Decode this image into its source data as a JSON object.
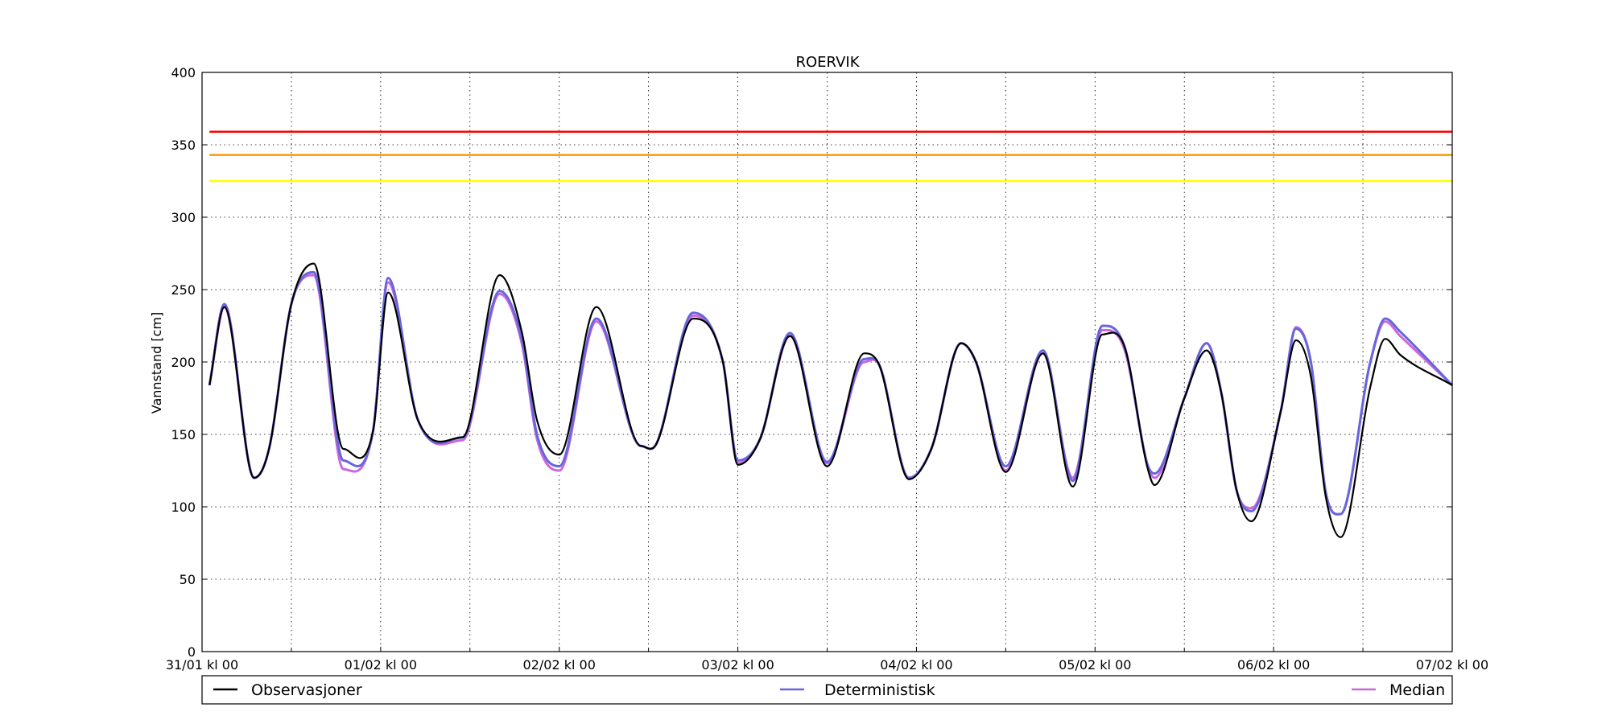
{
  "chart_data": {
    "type": "line",
    "title": "ROERVIK",
    "ylabel": "Vannstand [cm]",
    "ylim": [
      0,
      400
    ],
    "yticks": [
      "0",
      "50",
      "100",
      "150",
      "200",
      "250",
      "300",
      "350",
      "400"
    ],
    "x_range_hours": [
      0,
      168
    ],
    "xticks": [
      {
        "hour": 0,
        "label": "31/01 kl 00"
      },
      {
        "hour": 24,
        "label": "01/02 kl 00"
      },
      {
        "hour": 48,
        "label": "02/02 kl 00"
      },
      {
        "hour": 72,
        "label": "03/02 kl 00"
      },
      {
        "hour": 96,
        "label": "04/02 kl 00"
      },
      {
        "hour": 120,
        "label": "05/02 kl 00"
      },
      {
        "hour": 144,
        "label": "06/02 kl 00"
      },
      {
        "hour": 168,
        "label": "07/02 kl 00"
      }
    ],
    "minor_xticks_hours": [
      12,
      36,
      60,
      84,
      108,
      132,
      156
    ],
    "grid": true,
    "thresholds": [
      {
        "value": 359,
        "color": "#ff0000"
      },
      {
        "value": 343,
        "color": "#ff9900"
      },
      {
        "value": 325,
        "color": "#ffff00"
      }
    ],
    "series": [
      {
        "name": "Observasjoner",
        "color": "#000000",
        "points": [
          [
            1,
            184
          ],
          [
            3,
            238
          ],
          [
            7,
            120
          ],
          [
            9,
            140
          ],
          [
            12,
            240
          ],
          [
            15,
            268
          ],
          [
            19,
            140
          ],
          [
            23,
            153
          ],
          [
            25,
            248
          ],
          [
            29,
            160
          ],
          [
            35,
            148
          ],
          [
            40,
            260
          ],
          [
            43,
            220
          ],
          [
            45,
            160
          ],
          [
            48,
            136
          ],
          [
            53,
            238
          ],
          [
            59,
            142
          ],
          [
            61,
            143
          ],
          [
            66,
            230
          ],
          [
            70,
            200
          ],
          [
            72,
            129
          ],
          [
            75,
            147
          ],
          [
            79,
            218
          ],
          [
            84,
            128
          ],
          [
            89,
            206
          ],
          [
            91,
            198
          ],
          [
            95,
            119
          ],
          [
            98,
            140
          ],
          [
            102,
            213
          ],
          [
            104,
            200
          ],
          [
            108,
            124
          ],
          [
            113,
            206
          ],
          [
            117,
            114
          ],
          [
            121,
            219
          ],
          [
            124,
            210
          ],
          [
            127,
            128
          ],
          [
            128,
            115
          ],
          [
            132,
            175
          ],
          [
            135,
            208
          ],
          [
            137,
            178
          ],
          [
            139,
            112
          ],
          [
            141,
            90
          ],
          [
            145,
            167
          ],
          [
            147,
            215
          ],
          [
            149,
            190
          ],
          [
            151,
            107
          ],
          [
            153,
            79
          ],
          [
            157,
            183
          ],
          [
            159,
            216
          ],
          [
            161,
            205
          ],
          [
            168,
            184
          ]
        ]
      },
      {
        "name": "Deterministisk",
        "color": "#6666dd",
        "points": [
          [
            1,
            184
          ],
          [
            3,
            240
          ],
          [
            7,
            120
          ],
          [
            9,
            140
          ],
          [
            12,
            240
          ],
          [
            15,
            262
          ],
          [
            19,
            132
          ],
          [
            23,
            153
          ],
          [
            25,
            258
          ],
          [
            29,
            160
          ],
          [
            35,
            148
          ],
          [
            40,
            249
          ],
          [
            43,
            215
          ],
          [
            45,
            150
          ],
          [
            48,
            128
          ],
          [
            53,
            230
          ],
          [
            59,
            142
          ],
          [
            61,
            143
          ],
          [
            66,
            234
          ],
          [
            70,
            200
          ],
          [
            72,
            132
          ],
          [
            75,
            147
          ],
          [
            79,
            220
          ],
          [
            84,
            131
          ],
          [
            89,
            202
          ],
          [
            91,
            198
          ],
          [
            95,
            120
          ],
          [
            98,
            140
          ],
          [
            102,
            213
          ],
          [
            104,
            200
          ],
          [
            108,
            128
          ],
          [
            113,
            208
          ],
          [
            117,
            118
          ],
          [
            121,
            225
          ],
          [
            124,
            210
          ],
          [
            127,
            130
          ],
          [
            128,
            123
          ],
          [
            132,
            175
          ],
          [
            135,
            213
          ],
          [
            137,
            178
          ],
          [
            139,
            112
          ],
          [
            141,
            97
          ],
          [
            145,
            167
          ],
          [
            147,
            223
          ],
          [
            149,
            200
          ],
          [
            151,
            110
          ],
          [
            153,
            95
          ],
          [
            157,
            200
          ],
          [
            159,
            230
          ],
          [
            161,
            221
          ],
          [
            168,
            184
          ]
        ]
      },
      {
        "name": "Median",
        "color": "#cc66dd",
        "points": [
          [
            1,
            184
          ],
          [
            3,
            238
          ],
          [
            7,
            120
          ],
          [
            9,
            140
          ],
          [
            12,
            240
          ],
          [
            15,
            260
          ],
          [
            19,
            126
          ],
          [
            23,
            153
          ],
          [
            25,
            255
          ],
          [
            29,
            160
          ],
          [
            35,
            146
          ],
          [
            40,
            247
          ],
          [
            43,
            212
          ],
          [
            45,
            147
          ],
          [
            48,
            125
          ],
          [
            53,
            228
          ],
          [
            59,
            142
          ],
          [
            61,
            143
          ],
          [
            66,
            232
          ],
          [
            70,
            200
          ],
          [
            72,
            130
          ],
          [
            75,
            147
          ],
          [
            79,
            218
          ],
          [
            84,
            130
          ],
          [
            89,
            200
          ],
          [
            91,
            198
          ],
          [
            95,
            120
          ],
          [
            98,
            140
          ],
          [
            102,
            213
          ],
          [
            104,
            200
          ],
          [
            108,
            125
          ],
          [
            113,
            206
          ],
          [
            117,
            120
          ],
          [
            121,
            222
          ],
          [
            124,
            208
          ],
          [
            127,
            130
          ],
          [
            128,
            120
          ],
          [
            132,
            175
          ],
          [
            135,
            213
          ],
          [
            137,
            178
          ],
          [
            139,
            112
          ],
          [
            141,
            99
          ],
          [
            145,
            167
          ],
          [
            147,
            224
          ],
          [
            149,
            200
          ],
          [
            151,
            110
          ],
          [
            153,
            95
          ],
          [
            157,
            200
          ],
          [
            159,
            228
          ],
          [
            161,
            218
          ],
          [
            168,
            184
          ]
        ]
      }
    ]
  }
}
